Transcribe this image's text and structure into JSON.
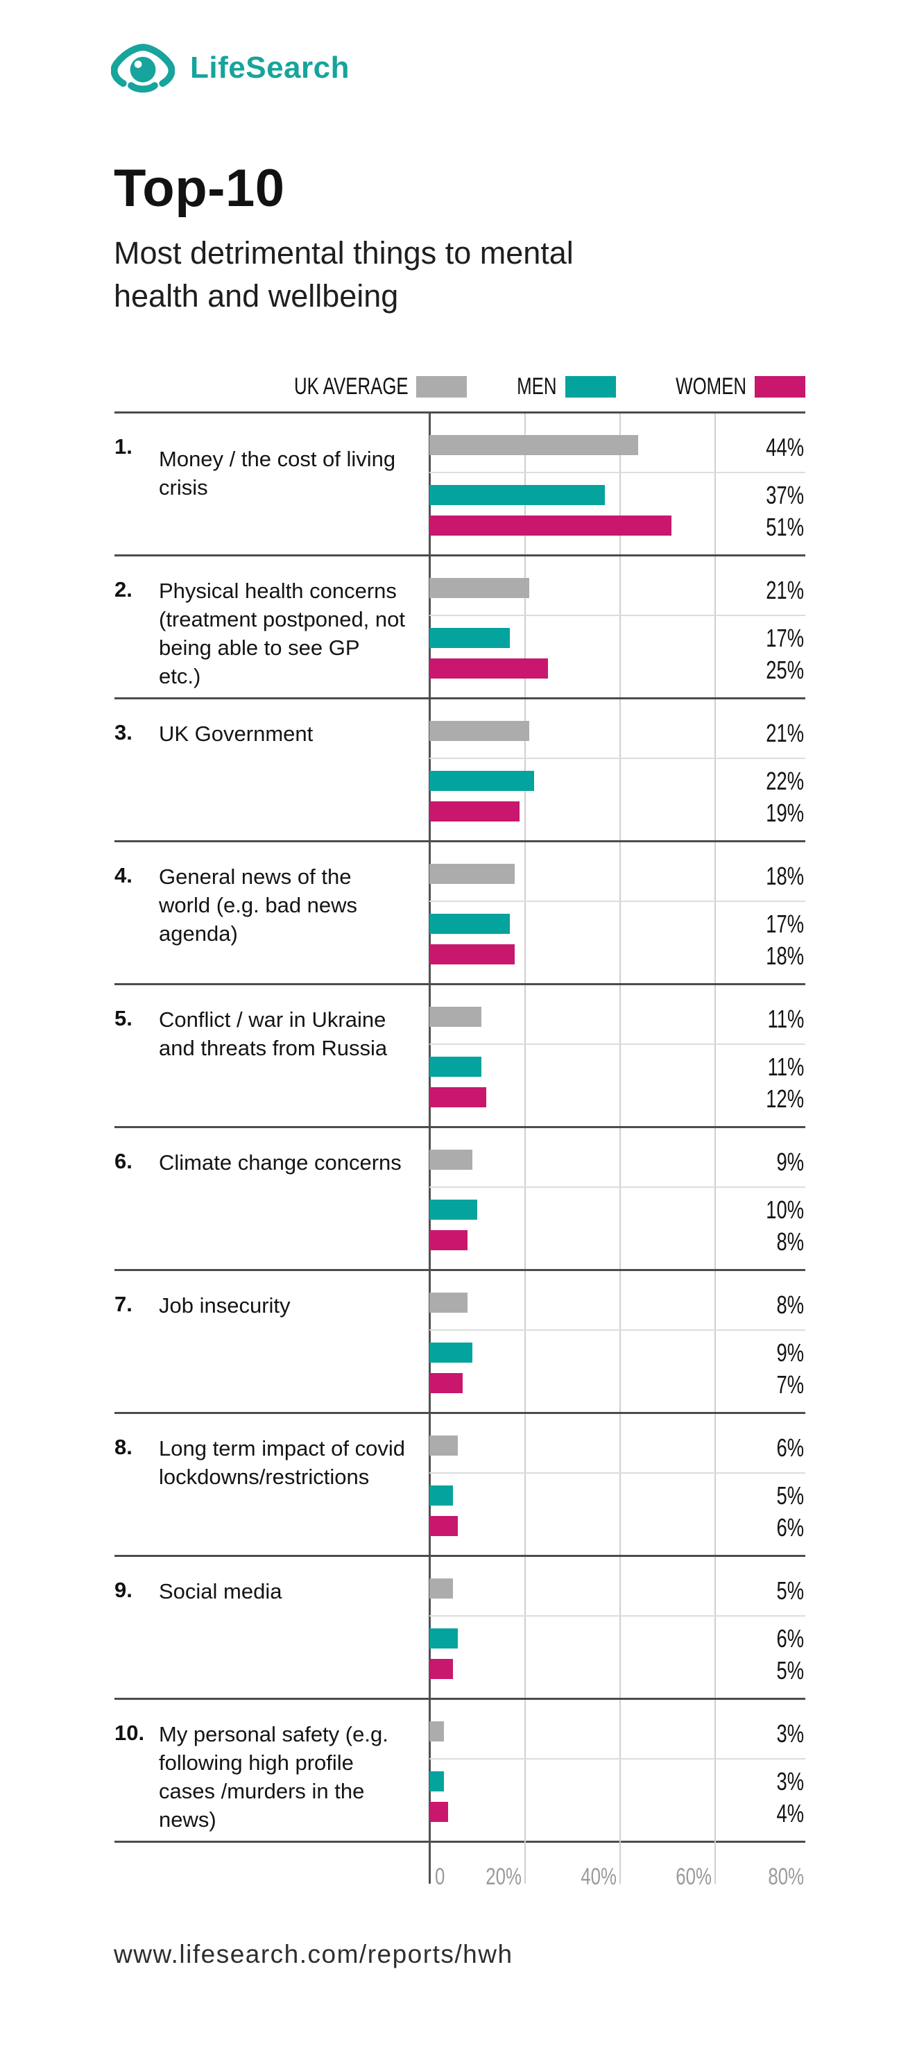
{
  "logo": {
    "brand": "LifeSearch"
  },
  "header": {
    "title": "Top-10",
    "subtitle": "Most detrimental things to mental health and wellbeing"
  },
  "legend": {
    "items": [
      {
        "label": "UK AVERAGE",
        "color": "#acacac"
      },
      {
        "label": "MEN",
        "color": "#05a39e"
      },
      {
        "label": "WOMEN",
        "color": "#c9176e"
      }
    ]
  },
  "chart_data": {
    "type": "bar",
    "orientation": "horizontal",
    "title": "Top-10 Most detrimental things to mental health and wellbeing",
    "xlim": [
      0,
      80
    ],
    "axis_ticks": [
      "0",
      "20%",
      "40%",
      "60%",
      "80%"
    ],
    "grid": true,
    "legend_position": "top-right",
    "series": [
      "UK Average",
      "Men",
      "Women"
    ],
    "colors": {
      "uk_average": "#acacac",
      "men": "#05a39e",
      "women": "#c9176e"
    },
    "items": [
      {
        "rank": "1.",
        "label": "Money / the cost of living crisis",
        "values": {
          "uk_average": 44,
          "men": 37,
          "women": 51
        },
        "labels": {
          "uk_average": "44%",
          "men": "37%",
          "women": "51%"
        }
      },
      {
        "rank": "2.",
        "label": "Physical health concerns (treatment postponed, not being able to see GP etc.)",
        "values": {
          "uk_average": 21,
          "men": 17,
          "women": 25
        },
        "labels": {
          "uk_average": "21%",
          "men": "17%",
          "women": "25%"
        }
      },
      {
        "rank": "3.",
        "label": "UK Government",
        "values": {
          "uk_average": 21,
          "men": 22,
          "women": 19
        },
        "labels": {
          "uk_average": "21%",
          "men": "22%",
          "women": "19%"
        }
      },
      {
        "rank": "4.",
        "label": "General news of the world (e.g. bad news agenda)",
        "values": {
          "uk_average": 18,
          "men": 17,
          "women": 18
        },
        "labels": {
          "uk_average": "18%",
          "men": "17%",
          "women": "18%"
        }
      },
      {
        "rank": "5.",
        "label": "Conflict / war in Ukraine and threats from Russia",
        "values": {
          "uk_average": 11,
          "men": 11,
          "women": 12
        },
        "labels": {
          "uk_average": "11%",
          "men": "11%",
          "women": "12%"
        }
      },
      {
        "rank": "6.",
        "label": "Climate change concerns",
        "values": {
          "uk_average": 9,
          "men": 10,
          "women": 8
        },
        "labels": {
          "uk_average": "9%",
          "men": "10%",
          "women": "8%"
        }
      },
      {
        "rank": "7.",
        "label": "Job insecurity",
        "values": {
          "uk_average": 8,
          "men": 9,
          "women": 7
        },
        "labels": {
          "uk_average": "8%",
          "men": "9%",
          "women": "7%"
        }
      },
      {
        "rank": "8.",
        "label": "Long term impact of covid lockdowns/restrictions",
        "values": {
          "uk_average": 6,
          "men": 5,
          "women": 6
        },
        "labels": {
          "uk_average": "6%",
          "men": "5%",
          "women": "6%"
        }
      },
      {
        "rank": "9.",
        "label": "Social media",
        "values": {
          "uk_average": 5,
          "men": 6,
          "women": 5
        },
        "labels": {
          "uk_average": "5%",
          "men": "6%",
          "women": "5%"
        }
      },
      {
        "rank": "10.",
        "label": "My personal safety (e.g. following high profile cases /murders in the news)",
        "values": {
          "uk_average": 3,
          "men": 3,
          "women": 4
        },
        "labels": {
          "uk_average": "3%",
          "men": "3%",
          "women": "4%"
        }
      }
    ]
  },
  "footer": {
    "url": "www.lifesearch.com/reports/hwh"
  }
}
